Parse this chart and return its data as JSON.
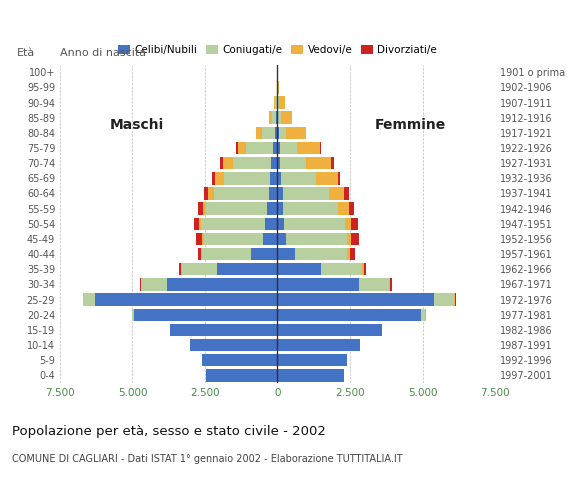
{
  "age_groups": [
    "0-4",
    "5-9",
    "10-14",
    "15-19",
    "20-24",
    "25-29",
    "30-34",
    "35-39",
    "40-44",
    "45-49",
    "50-54",
    "55-59",
    "60-64",
    "65-69",
    "70-74",
    "75-79",
    "80-84",
    "85-89",
    "90-94",
    "95-99",
    "100+"
  ],
  "birth_years": [
    "1997-2001",
    "1992-1996",
    "1987-1991",
    "1982-1986",
    "1977-1981",
    "1972-1976",
    "1967-1971",
    "1962-1966",
    "1957-1961",
    "1952-1956",
    "1947-1951",
    "1942-1946",
    "1937-1941",
    "1932-1936",
    "1927-1931",
    "1922-1926",
    "1917-1921",
    "1912-1916",
    "1907-1911",
    "1902-1906",
    "1901 o prima"
  ],
  "males": {
    "celibe": [
      2450,
      2600,
      3000,
      3700,
      4950,
      6300,
      3800,
      2100,
      900,
      500,
      420,
      360,
      300,
      250,
      220,
      170,
      100,
      50,
      30,
      0,
      0
    ],
    "coniugato": [
      0,
      0,
      0,
      0,
      80,
      400,
      900,
      1200,
      1700,
      2050,
      2200,
      2100,
      1900,
      1600,
      1300,
      900,
      450,
      130,
      50,
      0,
      0
    ],
    "vedovo": [
      0,
      0,
      0,
      0,
      0,
      5,
      10,
      20,
      30,
      50,
      70,
      120,
      200,
      300,
      350,
      300,
      200,
      100,
      50,
      5,
      0
    ],
    "divorziato": [
      0,
      0,
      0,
      0,
      0,
      10,
      30,
      80,
      120,
      200,
      200,
      170,
      150,
      100,
      100,
      50,
      0,
      0,
      0,
      0,
      0
    ]
  },
  "females": {
    "nubile": [
      2300,
      2400,
      2850,
      3600,
      4950,
      5400,
      2800,
      1500,
      600,
      300,
      230,
      200,
      180,
      120,
      100,
      80,
      50,
      30,
      20,
      0,
      0
    ],
    "coniugata": [
      0,
      0,
      0,
      0,
      150,
      700,
      1050,
      1400,
      1800,
      2100,
      2100,
      1900,
      1600,
      1200,
      900,
      600,
      250,
      80,
      30,
      0,
      0
    ],
    "vedova": [
      0,
      0,
      0,
      0,
      5,
      20,
      40,
      70,
      100,
      150,
      200,
      350,
      500,
      750,
      850,
      800,
      700,
      400,
      200,
      50,
      10
    ],
    "divorziata": [
      0,
      0,
      0,
      0,
      0,
      20,
      50,
      80,
      180,
      250,
      250,
      200,
      180,
      100,
      100,
      30,
      0,
      0,
      0,
      0,
      0
    ]
  },
  "colors": {
    "celibe": "#4472c4",
    "coniugato": "#b8cfa0",
    "vedovo": "#f0b040",
    "divorziato": "#cc2222"
  },
  "title": "Popolazione per età, sesso e stato civile - 2002",
  "subtitle": "COMUNE DI CAGLIARI - Dati ISTAT 1° gennaio 2002 - Elaborazione TUTTITALIA.IT",
  "xlabel_left": "Maschi",
  "xlabel_right": "Femmine",
  "ylabel_left": "Età",
  "ylabel_right": "Anno di nascita",
  "xmax": 7500,
  "xticks": [
    -7500,
    -5000,
    -2500,
    0,
    2500,
    5000,
    7500
  ],
  "xticklabels": [
    "7.500",
    "5.000",
    "2.500",
    "0",
    "2.500",
    "5.000",
    "7.500"
  ],
  "legend_labels": [
    "Celibi/Nubili",
    "Coniugati/e",
    "Vedovi/e",
    "Divorziati/e"
  ],
  "background_color": "#ffffff"
}
